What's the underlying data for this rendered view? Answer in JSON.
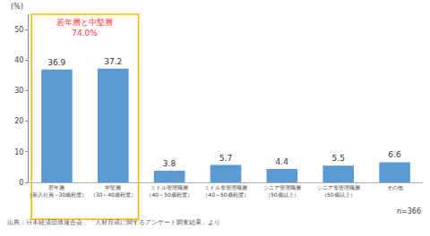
{
  "chart_data": {
    "type": "bar",
    "ylabel": "(%)",
    "categories": [
      "若年層\n（新入社員～30歳程度）",
      "中堅層\n（30～40歳程度）",
      "ミドル管理職層\n（40～50歳程度）",
      "ミドル非管理職層\n（40～50歳程度）",
      "シニア管理職層\n（50歳以上）",
      "シニア非管理職層\n（50歳以上）",
      "その他"
    ],
    "values": [
      36.9,
      37.2,
      3.8,
      5.7,
      4.4,
      5.5,
      6.6
    ],
    "color": "#5b9bd5",
    "ylim": [
      0,
      55
    ],
    "yticks": [
      0,
      10,
      20,
      30,
      40,
      50
    ],
    "grid": false,
    "data_labels": true,
    "callout": [
      "若年層と中堅層",
      "74.0%"
    ],
    "note": "n=366",
    "source": "出典：日本経済団体連合会　「人材育成に関するアンケート調査結果」より"
  }
}
